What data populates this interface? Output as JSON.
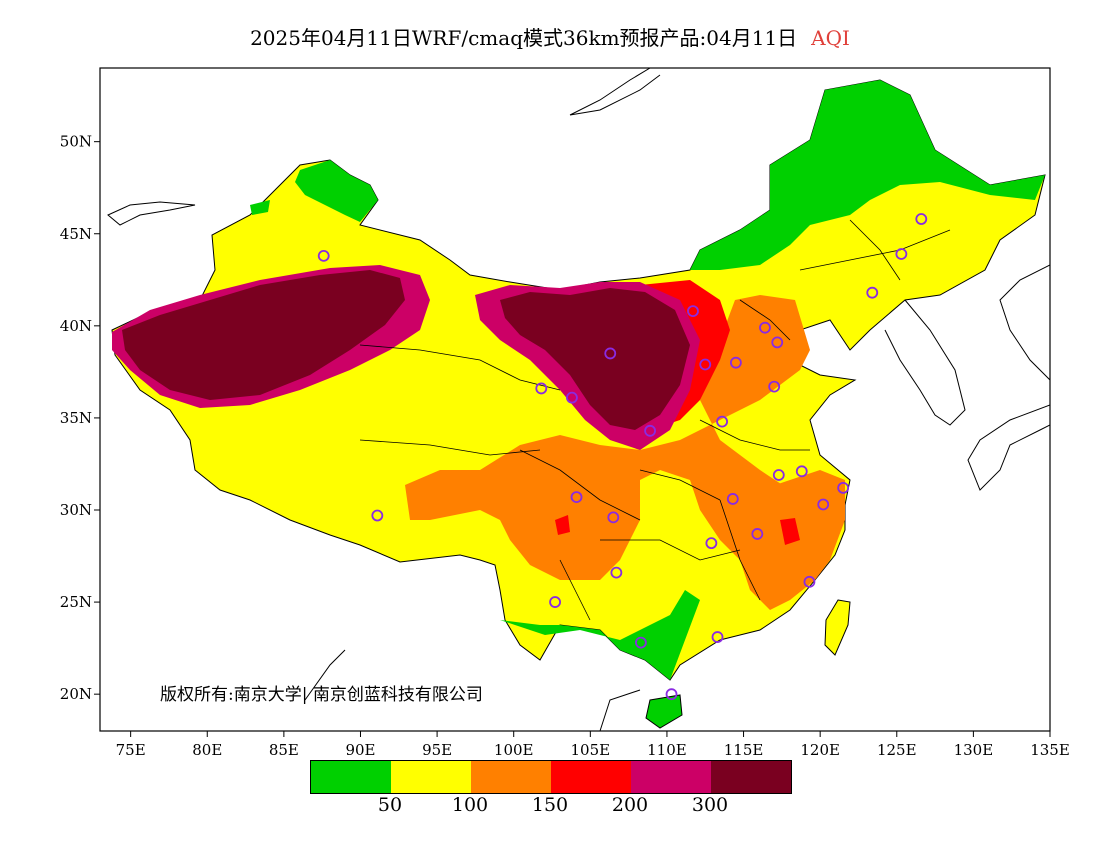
{
  "title": {
    "main": "2025年04月11日WRF/cmaq模式36km预报产品:04月11日",
    "variable": "AQI",
    "variable_color": "#e0403a"
  },
  "axes": {
    "lon_labels": [
      "75E",
      "80E",
      "85E",
      "90E",
      "95E",
      "100E",
      "105E",
      "110E",
      "115E",
      "120E",
      "125E",
      "130E",
      "135E"
    ],
    "lat_labels": [
      "50N",
      "45N",
      "40N",
      "35N",
      "30N",
      "25N",
      "20N"
    ],
    "lon_range": [
      73,
      135
    ],
    "lat_range": [
      18,
      54
    ]
  },
  "legend": {
    "colors": [
      "#00d000",
      "#ffff00",
      "#ff8000",
      "#ff0000",
      "#cc0066",
      "#7a0020"
    ],
    "labels": [
      "50",
      "100",
      "150",
      "200",
      "300"
    ]
  },
  "copyright": "版权所有:南京大学| 南京创蓝科技有限公司",
  "stations": [
    {
      "lon": 87.6,
      "lat": 43.8
    },
    {
      "lon": 91.1,
      "lat": 29.7
    },
    {
      "lon": 101.8,
      "lat": 36.6
    },
    {
      "lon": 103.8,
      "lat": 36.1
    },
    {
      "lon": 106.3,
      "lat": 38.5
    },
    {
      "lon": 111.7,
      "lat": 40.8
    },
    {
      "lon": 112.5,
      "lat": 37.9
    },
    {
      "lon": 114.5,
      "lat": 38.0
    },
    {
      "lon": 116.4,
      "lat": 39.9
    },
    {
      "lon": 117.2,
      "lat": 39.1
    },
    {
      "lon": 117.0,
      "lat": 36.7
    },
    {
      "lon": 113.6,
      "lat": 34.8
    },
    {
      "lon": 108.9,
      "lat": 34.3
    },
    {
      "lon": 104.1,
      "lat": 30.7
    },
    {
      "lon": 106.5,
      "lat": 29.6
    },
    {
      "lon": 106.7,
      "lat": 26.6
    },
    {
      "lon": 102.7,
      "lat": 25.0
    },
    {
      "lon": 108.3,
      "lat": 22.8
    },
    {
      "lon": 113.3,
      "lat": 23.1
    },
    {
      "lon": 110.3,
      "lat": 20.0
    },
    {
      "lon": 112.9,
      "lat": 28.2
    },
    {
      "lon": 115.9,
      "lat": 28.7
    },
    {
      "lon": 114.3,
      "lat": 30.6
    },
    {
      "lon": 117.3,
      "lat": 31.9
    },
    {
      "lon": 118.8,
      "lat": 32.1
    },
    {
      "lon": 120.2,
      "lat": 30.3
    },
    {
      "lon": 121.5,
      "lat": 31.2
    },
    {
      "lon": 119.3,
      "lat": 26.1
    },
    {
      "lon": 123.4,
      "lat": 41.8
    },
    {
      "lon": 125.3,
      "lat": 43.9
    },
    {
      "lon": 126.6,
      "lat": 45.8
    }
  ]
}
